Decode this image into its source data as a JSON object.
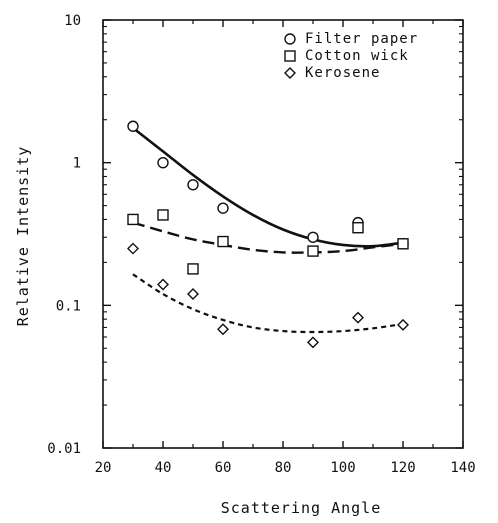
{
  "chart_data": {
    "type": "scatter",
    "xlabel": "Scattering Angle",
    "ylabel": "Relative Intensity",
    "xlim": [
      20,
      140
    ],
    "ylim": [
      0.01,
      10
    ],
    "yscale": "log",
    "xticks": [
      20,
      40,
      60,
      80,
      100,
      120,
      140
    ],
    "xtick_labels": [
      "20",
      "40",
      "60",
      "80",
      "100",
      "120",
      "140"
    ],
    "yticks": [
      0.01,
      0.1,
      1,
      10
    ],
    "ytick_labels": [
      "0.01",
      "0.1",
      "1",
      "10"
    ],
    "grid": false,
    "legend_position": "top-right",
    "series": [
      {
        "name": "Filter paper",
        "marker": "circle",
        "line_style": "solid",
        "x": [
          30,
          40,
          50,
          60,
          90,
          105,
          120
        ],
        "y": [
          1.8,
          1.0,
          0.7,
          0.48,
          0.3,
          0.38,
          0.27
        ],
        "fit_x": [
          30,
          40,
          50,
          60,
          70,
          80,
          90,
          100,
          110,
          120
        ],
        "fit_y": [
          1.75,
          1.2,
          0.82,
          0.58,
          0.43,
          0.34,
          0.29,
          0.265,
          0.26,
          0.275
        ]
      },
      {
        "name": "Cotton wick",
        "marker": "square",
        "line_style": "dashed",
        "x": [
          30,
          40,
          50,
          60,
          90,
          105,
          120
        ],
        "y": [
          0.4,
          0.43,
          0.18,
          0.28,
          0.24,
          0.35,
          0.27
        ],
        "fit_x": [
          30,
          40,
          50,
          60,
          70,
          80,
          90,
          100,
          110,
          120
        ],
        "fit_y": [
          0.38,
          0.33,
          0.29,
          0.265,
          0.245,
          0.235,
          0.235,
          0.24,
          0.255,
          0.27
        ]
      },
      {
        "name": "Kerosene",
        "marker": "diamond",
        "line_style": "dotted",
        "x": [
          30,
          40,
          50,
          60,
          90,
          105,
          120
        ],
        "y": [
          0.25,
          0.14,
          0.12,
          0.068,
          0.055,
          0.082,
          0.073
        ],
        "fit_x": [
          30,
          40,
          50,
          60,
          70,
          80,
          90,
          100,
          110,
          120
        ],
        "fit_y": [
          0.165,
          0.12,
          0.094,
          0.079,
          0.07,
          0.066,
          0.065,
          0.066,
          0.069,
          0.074
        ]
      }
    ]
  }
}
